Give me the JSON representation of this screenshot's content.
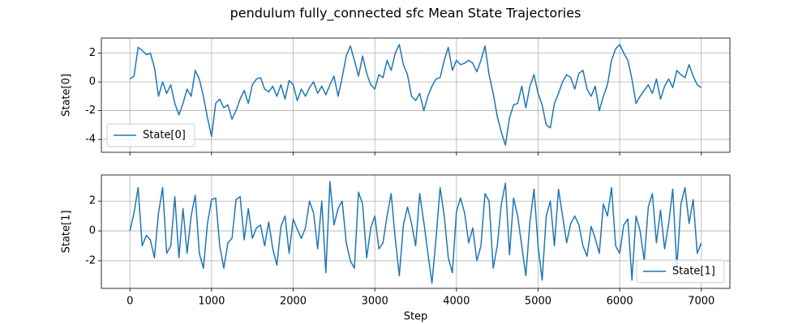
{
  "title": "pendulum fully_connected sfc Mean State Trajectories",
  "chart_data": [
    {
      "type": "line",
      "ylabel": "State[0]",
      "grid": true,
      "legend": "lower left",
      "xlim": [
        -350,
        7350
      ],
      "xticks": [
        0,
        1000,
        2000,
        3000,
        4000,
        5000,
        6000,
        7000
      ],
      "ylim": [
        -4.9,
        3.05
      ],
      "yticks": [
        -4,
        -2,
        0,
        2
      ],
      "x": [
        0,
        50,
        100,
        150,
        200,
        250,
        300,
        350,
        400,
        450,
        500,
        550,
        600,
        650,
        700,
        750,
        800,
        850,
        900,
        950,
        1000,
        1050,
        1100,
        1150,
        1200,
        1250,
        1300,
        1350,
        1400,
        1450,
        1500,
        1550,
        1600,
        1650,
        1700,
        1750,
        1800,
        1850,
        1900,
        1950,
        2000,
        2050,
        2100,
        2150,
        2200,
        2250,
        2300,
        2350,
        2400,
        2450,
        2500,
        2550,
        2600,
        2650,
        2700,
        2750,
        2800,
        2850,
        2900,
        2950,
        3000,
        3050,
        3100,
        3150,
        3200,
        3250,
        3300,
        3350,
        3400,
        3450,
        3500,
        3550,
        3600,
        3650,
        3700,
        3750,
        3800,
        3850,
        3900,
        3950,
        4000,
        4050,
        4100,
        4150,
        4200,
        4250,
        4300,
        4350,
        4400,
        4450,
        4500,
        4550,
        4600,
        4650,
        4700,
        4750,
        4800,
        4850,
        4900,
        4950,
        5000,
        5050,
        5100,
        5150,
        5200,
        5250,
        5300,
        5350,
        5400,
        5450,
        5500,
        5550,
        5600,
        5650,
        5700,
        5750,
        5800,
        5850,
        5900,
        5950,
        6000,
        6050,
        6100,
        6150,
        6200,
        6250,
        6300,
        6350,
        6400,
        6450,
        6500,
        6550,
        6600,
        6650,
        6700,
        6750,
        6800,
        6850,
        6900,
        6950,
        7000
      ],
      "series": [
        {
          "name": "State[0]",
          "color": "#1f77b4",
          "values": [
            0.2,
            0.4,
            2.4,
            2.2,
            1.9,
            2.0,
            1.0,
            -1.0,
            0.0,
            -0.8,
            -0.2,
            -1.5,
            -2.3,
            -1.5,
            -0.5,
            -1.0,
            0.8,
            0.2,
            -1.0,
            -2.5,
            -3.8,
            -1.5,
            -1.2,
            -1.8,
            -1.6,
            -2.6,
            -2.0,
            -1.2,
            -0.6,
            -1.5,
            -0.2,
            0.2,
            0.3,
            -0.5,
            -0.7,
            -0.3,
            -1.0,
            -0.2,
            -1.2,
            0.1,
            -0.2,
            -1.3,
            -0.5,
            -1.0,
            -0.4,
            0.0,
            -0.8,
            -0.3,
            -0.9,
            -0.2,
            0.4,
            -1.0,
            0.3,
            1.8,
            2.5,
            1.5,
            0.4,
            1.8,
            0.6,
            -0.2,
            -0.5,
            0.5,
            0.3,
            1.5,
            0.8,
            2.0,
            2.6,
            1.2,
            0.5,
            -1.0,
            -1.3,
            -0.8,
            -2.0,
            -1.0,
            -0.3,
            0.2,
            0.3,
            1.5,
            2.4,
            0.8,
            1.5,
            1.2,
            1.3,
            1.5,
            1.3,
            0.7,
            1.5,
            2.5,
            0.5,
            -0.8,
            -2.4,
            -3.5,
            -4.4,
            -2.5,
            -1.6,
            -1.5,
            -0.3,
            -1.8,
            -0.3,
            0.5,
            -0.8,
            -1.6,
            -3.0,
            -3.2,
            -1.5,
            -0.8,
            0.0,
            0.5,
            0.3,
            -0.5,
            0.6,
            0.8,
            -0.5,
            -1.0,
            -0.3,
            -2.0,
            -1.0,
            -0.2,
            1.5,
            2.3,
            2.6,
            2.0,
            1.5,
            0.2,
            -1.5,
            -1.0,
            -0.6,
            -0.2,
            -0.8,
            0.2,
            -1.2,
            -0.3,
            0.2,
            -0.4,
            0.8,
            0.5,
            0.3,
            1.2,
            0.4,
            -0.2,
            -0.4
          ]
        }
      ]
    },
    {
      "type": "line",
      "ylabel": "State[1]",
      "xlabel": "Step",
      "grid": true,
      "legend": "lower right",
      "xlim": [
        -350,
        7350
      ],
      "xticks": [
        0,
        1000,
        2000,
        3000,
        4000,
        5000,
        6000,
        7000
      ],
      "ylim": [
        -3.85,
        3.75
      ],
      "yticks": [
        -2,
        0,
        2
      ],
      "x": [
        0,
        50,
        100,
        150,
        200,
        250,
        300,
        350,
        400,
        450,
        500,
        550,
        600,
        650,
        700,
        750,
        800,
        850,
        900,
        950,
        1000,
        1050,
        1100,
        1150,
        1200,
        1250,
        1300,
        1350,
        1400,
        1450,
        1500,
        1550,
        1600,
        1650,
        1700,
        1750,
        1800,
        1850,
        1900,
        1950,
        2000,
        2050,
        2100,
        2150,
        2200,
        2250,
        2300,
        2350,
        2400,
        2450,
        2500,
        2550,
        2600,
        2650,
        2700,
        2750,
        2800,
        2850,
        2900,
        2950,
        3000,
        3050,
        3100,
        3150,
        3200,
        3250,
        3300,
        3350,
        3400,
        3450,
        3500,
        3550,
        3600,
        3650,
        3700,
        3750,
        3800,
        3850,
        3900,
        3950,
        4000,
        4050,
        4100,
        4150,
        4200,
        4250,
        4300,
        4350,
        4400,
        4450,
        4500,
        4550,
        4600,
        4650,
        4700,
        4750,
        4800,
        4850,
        4900,
        4950,
        5000,
        5050,
        5100,
        5150,
        5200,
        5250,
        5300,
        5350,
        5400,
        5450,
        5500,
        5550,
        5600,
        5650,
        5700,
        5750,
        5800,
        5850,
        5900,
        5950,
        6000,
        6050,
        6100,
        6150,
        6200,
        6250,
        6300,
        6350,
        6400,
        6450,
        6500,
        6550,
        6600,
        6650,
        6700,
        6750,
        6800,
        6850,
        6900,
        6950,
        7000
      ],
      "series": [
        {
          "name": "State[1]",
          "color": "#1f77b4",
          "values": [
            0.0,
            1.2,
            2.9,
            -1.0,
            -0.3,
            -0.6,
            -1.8,
            1.2,
            2.9,
            -1.5,
            -1.0,
            2.3,
            -1.8,
            1.5,
            -1.5,
            1.0,
            2.4,
            -1.5,
            -2.5,
            0.5,
            2.1,
            2.2,
            -1.0,
            -2.5,
            -0.8,
            -0.5,
            2.1,
            2.3,
            -0.6,
            1.5,
            -0.5,
            0.2,
            0.4,
            -1.0,
            0.6,
            -1.2,
            -2.3,
            0.3,
            1.0,
            -1.5,
            0.8,
            0.1,
            -0.5,
            0.2,
            2.0,
            1.2,
            -1.2,
            2.0,
            -2.8,
            3.3,
            0.4,
            1.5,
            2.0,
            -0.8,
            -2.0,
            -2.5,
            2.6,
            1.8,
            -1.8,
            0.2,
            1.0,
            -1.2,
            -0.8,
            1.0,
            2.5,
            -0.5,
            -3.0,
            0.4,
            1.6,
            0.5,
            -1.0,
            2.5,
            0.6,
            -1.5,
            -3.5,
            -0.5,
            2.9,
            1.0,
            -1.8,
            -2.8,
            1.3,
            2.2,
            1.2,
            -0.8,
            0.2,
            -2.0,
            -1.0,
            2.5,
            2.0,
            -2.5,
            -1.0,
            1.8,
            3.2,
            -1.6,
            2.2,
            1.0,
            -1.0,
            -3.0,
            0.6,
            2.8,
            -1.0,
            -3.3,
            1.0,
            2.0,
            -1.0,
            2.8,
            1.0,
            -0.8,
            0.5,
            1.0,
            0.4,
            -1.0,
            -1.7,
            0.3,
            -0.5,
            -1.5,
            1.8,
            1.0,
            2.9,
            -1.0,
            -1.5,
            0.4,
            0.8,
            -3.3,
            1.0,
            0.0,
            -2.0,
            1.6,
            2.5,
            -0.8,
            1.4,
            -1.2,
            0.5,
            2.8,
            -2.5,
            1.8,
            2.9,
            0.5,
            2.1,
            -1.5,
            -0.8
          ]
        }
      ]
    }
  ]
}
